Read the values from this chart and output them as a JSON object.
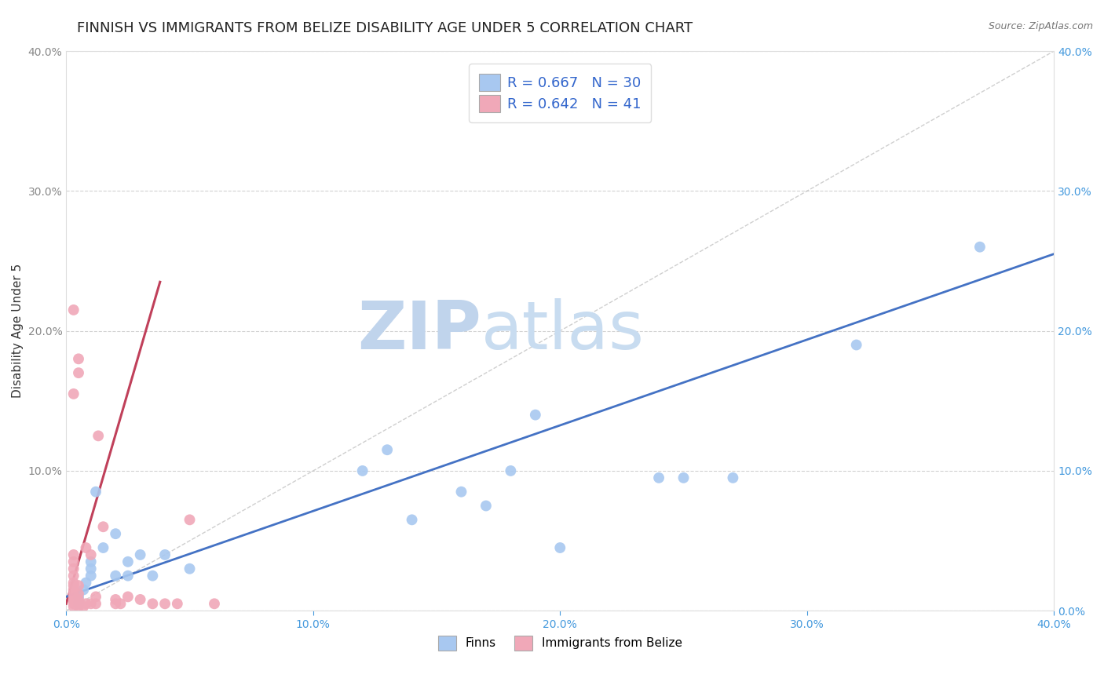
{
  "title": "FINNISH VS IMMIGRANTS FROM BELIZE DISABILITY AGE UNDER 5 CORRELATION CHART",
  "source": "Source: ZipAtlas.com",
  "ylabel": "Disability Age Under 5",
  "xlim": [
    0.0,
    0.4
  ],
  "ylim": [
    0.0,
    0.4
  ],
  "xtick_labels": [
    "0.0%",
    "",
    "10.0%",
    "",
    "20.0%",
    "",
    "30.0%",
    "",
    "40.0%"
  ],
  "xtick_vals": [
    0.0,
    0.05,
    0.1,
    0.15,
    0.2,
    0.25,
    0.3,
    0.35,
    0.4
  ],
  "ytick_labels": [
    "",
    "10.0%",
    "20.0%",
    "30.0%",
    "40.0%"
  ],
  "ytick_vals": [
    0.0,
    0.1,
    0.2,
    0.3,
    0.4
  ],
  "right_ytick_labels": [
    "40.0%",
    "30.0%",
    "20.0%",
    "10.0%",
    "0.0%"
  ],
  "right_ytick_vals": [
    0.4,
    0.3,
    0.2,
    0.1,
    0.0
  ],
  "finns_color": "#A8C8F0",
  "immigrants_color": "#F0A8B8",
  "finns_line_color": "#4472C4",
  "immigrants_line_color": "#C0405A",
  "identity_line_color": "#BBBBBB",
  "legend_r_color": "#3366CC",
  "finns_R": 0.667,
  "finns_N": 30,
  "immigrants_R": 0.642,
  "immigrants_N": 41,
  "watermark_zip": "ZIP",
  "watermark_atlas": "atlas",
  "watermark_color": "#C8D8EE",
  "finns_scatter_x": [
    0.005,
    0.005,
    0.007,
    0.008,
    0.01,
    0.01,
    0.01,
    0.012,
    0.015,
    0.02,
    0.02,
    0.025,
    0.025,
    0.03,
    0.035,
    0.04,
    0.05,
    0.12,
    0.13,
    0.14,
    0.16,
    0.17,
    0.18,
    0.19,
    0.2,
    0.24,
    0.25,
    0.27,
    0.32,
    0.37
  ],
  "finns_scatter_y": [
    0.005,
    0.01,
    0.015,
    0.02,
    0.025,
    0.03,
    0.035,
    0.085,
    0.045,
    0.055,
    0.025,
    0.035,
    0.025,
    0.04,
    0.025,
    0.04,
    0.03,
    0.1,
    0.115,
    0.065,
    0.085,
    0.075,
    0.1,
    0.14,
    0.045,
    0.095,
    0.095,
    0.095,
    0.19,
    0.26
  ],
  "immigrants_scatter_x": [
    0.003,
    0.003,
    0.003,
    0.003,
    0.003,
    0.003,
    0.003,
    0.003,
    0.003,
    0.003,
    0.003,
    0.003,
    0.003,
    0.003,
    0.003,
    0.005,
    0.005,
    0.005,
    0.005,
    0.005,
    0.005,
    0.005,
    0.007,
    0.008,
    0.008,
    0.01,
    0.01,
    0.012,
    0.012,
    0.013,
    0.015,
    0.02,
    0.02,
    0.022,
    0.025,
    0.03,
    0.035,
    0.04,
    0.045,
    0.05,
    0.06
  ],
  "immigrants_scatter_y": [
    0.003,
    0.005,
    0.007,
    0.008,
    0.01,
    0.012,
    0.015,
    0.018,
    0.02,
    0.025,
    0.03,
    0.035,
    0.04,
    0.155,
    0.215,
    0.003,
    0.005,
    0.008,
    0.012,
    0.018,
    0.17,
    0.18,
    0.003,
    0.005,
    0.045,
    0.005,
    0.04,
    0.005,
    0.01,
    0.125,
    0.06,
    0.005,
    0.008,
    0.005,
    0.01,
    0.008,
    0.005,
    0.005,
    0.005,
    0.065,
    0.005
  ],
  "finns_trend_x": [
    0.0,
    0.4
  ],
  "finns_trend_y": [
    0.01,
    0.255
  ],
  "immigrants_trend_x": [
    0.0,
    0.038
  ],
  "immigrants_trend_y": [
    0.005,
    0.235
  ],
  "background_color": "#FFFFFF",
  "grid_color": "#CCCCCC",
  "title_fontsize": 13,
  "axis_label_fontsize": 11,
  "tick_fontsize": 10,
  "legend_fontsize": 13
}
